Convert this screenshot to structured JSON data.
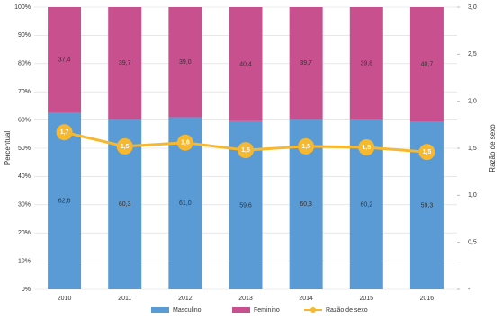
{
  "chart_data": {
    "type": "stacked-bar-line",
    "y_label": "Percentual",
    "y2_label": "Razão de sexo",
    "categories": [
      "2010",
      "2011",
      "2012",
      "2013",
      "2014",
      "2015",
      "2016"
    ],
    "series": [
      {
        "name": "Masculino",
        "color": "#5b9bd5",
        "values": [
          62.6,
          60.3,
          61.0,
          59.6,
          60.3,
          60.2,
          59.3
        ],
        "value_labels": [
          "62,6",
          "60,3",
          "61,0",
          "59,6",
          "60,3",
          "60,2",
          "59,3"
        ]
      },
      {
        "name": "Feminino",
        "color": "#c9508f",
        "values": [
          37.4,
          39.7,
          39.0,
          40.4,
          39.7,
          39.8,
          40.7
        ],
        "value_labels": [
          "37,4",
          "39,7",
          "39,0",
          "40,4",
          "39,7",
          "39,8",
          "40,7"
        ]
      },
      {
        "name": "Razão de sexo",
        "color": "#f5b82e",
        "axis": "y2",
        "values": [
          1.67,
          1.52,
          1.56,
          1.48,
          1.52,
          1.51,
          1.46
        ],
        "value_labels": [
          "1,7",
          "1,5",
          "1,6",
          "1,5",
          "1,5",
          "1,5",
          "1,5"
        ]
      }
    ],
    "ylim": [
      0,
      100
    ],
    "yticks": [
      {
        "value": 0,
        "label": "0%"
      },
      {
        "value": 10,
        "label": "10%"
      },
      {
        "value": 20,
        "label": "20%"
      },
      {
        "value": 30,
        "label": "30%"
      },
      {
        "value": 40,
        "label": "40%"
      },
      {
        "value": 50,
        "label": "50%"
      },
      {
        "value": 60,
        "label": "60%"
      },
      {
        "value": 70,
        "label": "70%"
      },
      {
        "value": 80,
        "label": "80%"
      },
      {
        "value": 90,
        "label": "90%"
      },
      {
        "value": 100,
        "label": "100%"
      }
    ],
    "y2lim": [
      0,
      3
    ],
    "y2ticks": [
      {
        "value": 0,
        "label": "-"
      },
      {
        "value": 0.5,
        "label": "0,5"
      },
      {
        "value": 1,
        "label": "1,0"
      },
      {
        "value": 1.5,
        "label": "1,5"
      },
      {
        "value": 2,
        "label": "2,0"
      },
      {
        "value": 2.5,
        "label": "2,5"
      },
      {
        "value": 3,
        "label": "3,0"
      }
    ],
    "grid": true,
    "legend": "bottom"
  }
}
